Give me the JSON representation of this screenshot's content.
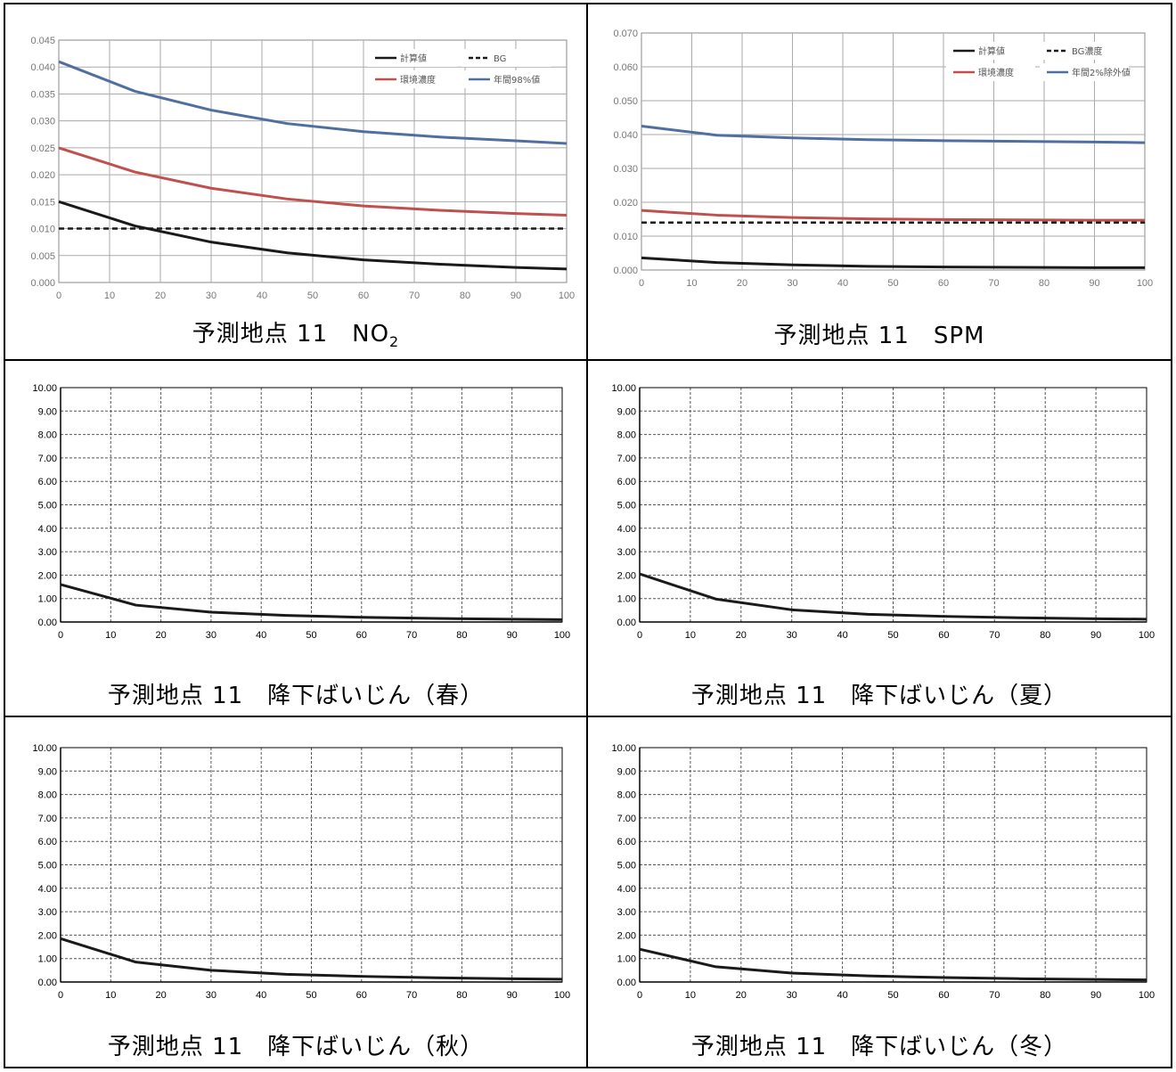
{
  "colors": {
    "calc": "#1a1a1a",
    "bg": "#1a1a1a",
    "env": "#c0504d",
    "annual": "#4f6fa0"
  },
  "panels": [
    {
      "caption_main": "予測地点 11　NO",
      "caption_sub": "2",
      "chart_data": {
        "type": "line",
        "x": [
          0,
          15,
          30,
          45,
          60,
          75,
          90,
          100
        ],
        "xticks": [
          0,
          10,
          20,
          30,
          40,
          50,
          60,
          70,
          80,
          90,
          100
        ],
        "xlim": [
          0,
          100
        ],
        "ylim": [
          0,
          0.045
        ],
        "yticks": [
          "0.000",
          "0.005",
          "0.010",
          "0.015",
          "0.020",
          "0.025",
          "0.030",
          "0.035",
          "0.040",
          "0.045"
        ],
        "grid": true,
        "legend_position": "top-right",
        "series": [
          {
            "name": "計算値",
            "style": "solid",
            "color_key": "calc",
            "values": [
              0.015,
              0.0105,
              0.0075,
              0.0055,
              0.0042,
              0.0034,
              0.0028,
              0.0025
            ]
          },
          {
            "name": "BG",
            "style": "dashed",
            "color_key": "bg",
            "values": [
              0.01,
              0.01,
              0.01,
              0.01,
              0.01,
              0.01,
              0.01,
              0.01
            ]
          },
          {
            "name": "環境濃度",
            "style": "solid",
            "color_key": "env",
            "values": [
              0.025,
              0.0205,
              0.0175,
              0.0155,
              0.0142,
              0.0134,
              0.0128,
              0.0125
            ]
          },
          {
            "name": "年間98%値",
            "style": "solid",
            "color_key": "annual",
            "values": [
              0.041,
              0.0355,
              0.032,
              0.0295,
              0.028,
              0.027,
              0.0263,
              0.0258
            ]
          }
        ]
      }
    },
    {
      "caption_main": "予測地点 11　SPM",
      "caption_sub": "",
      "chart_data": {
        "type": "line",
        "x": [
          0,
          15,
          30,
          45,
          60,
          75,
          90,
          100
        ],
        "xticks": [
          0,
          10,
          20,
          30,
          40,
          50,
          60,
          70,
          80,
          90,
          100
        ],
        "xlim": [
          0,
          100
        ],
        "ylim": [
          0,
          0.07
        ],
        "yticks": [
          "0.000",
          "0.010",
          "0.020",
          "0.030",
          "0.040",
          "0.050",
          "0.060",
          "0.070"
        ],
        "grid": true,
        "legend_position": "top-right",
        "series": [
          {
            "name": "計算値",
            "style": "solid",
            "color_key": "calc",
            "values": [
              0.0036,
              0.0022,
              0.0015,
              0.0011,
              0.0009,
              0.0008,
              0.0007,
              0.0007
            ]
          },
          {
            "name": "BG濃度",
            "style": "dashed",
            "color_key": "bg",
            "values": [
              0.014,
              0.014,
              0.014,
              0.014,
              0.014,
              0.014,
              0.014,
              0.014
            ]
          },
          {
            "name": "環境濃度",
            "style": "solid",
            "color_key": "env",
            "values": [
              0.0176,
              0.0162,
              0.0155,
              0.0151,
              0.0149,
              0.0148,
              0.0147,
              0.0147
            ]
          },
          {
            "name": "年間2%除外値",
            "style": "solid",
            "color_key": "annual",
            "values": [
              0.0425,
              0.0398,
              0.039,
              0.0385,
              0.0382,
              0.038,
              0.0378,
              0.0376
            ]
          }
        ]
      }
    },
    {
      "caption_main": "予測地点 11　降下ばいじん（春）",
      "caption_sub": "",
      "chart_data": {
        "type": "line",
        "x": [
          0,
          15,
          30,
          45,
          60,
          75,
          90,
          100
        ],
        "xticks": [
          0,
          10,
          20,
          30,
          40,
          50,
          60,
          70,
          80,
          90,
          100
        ],
        "xlim": [
          0,
          100
        ],
        "ylim": [
          0,
          10
        ],
        "yticks": [
          "0.00",
          "1.00",
          "2.00",
          "3.00",
          "4.00",
          "5.00",
          "6.00",
          "7.00",
          "8.00",
          "9.00",
          "10.00"
        ],
        "grid": true,
        "series": [
          {
            "name": "",
            "style": "solid",
            "color_key": "calc",
            "values": [
              1.6,
              0.72,
              0.42,
              0.28,
              0.2,
              0.15,
              0.12,
              0.1
            ]
          }
        ]
      }
    },
    {
      "caption_main": "予測地点 11　降下ばいじん（夏）",
      "caption_sub": "",
      "chart_data": {
        "type": "line",
        "x": [
          0,
          15,
          30,
          45,
          60,
          75,
          90,
          100
        ],
        "xticks": [
          0,
          10,
          20,
          30,
          40,
          50,
          60,
          70,
          80,
          90,
          100
        ],
        "xlim": [
          0,
          100
        ],
        "ylim": [
          0,
          10
        ],
        "yticks": [
          "0.00",
          "1.00",
          "2.00",
          "3.00",
          "4.00",
          "5.00",
          "6.00",
          "7.00",
          "8.00",
          "9.00",
          "10.00"
        ],
        "grid": true,
        "series": [
          {
            "name": "",
            "style": "solid",
            "color_key": "calc",
            "values": [
              2.05,
              0.98,
              0.52,
              0.33,
              0.24,
              0.18,
              0.14,
              0.12
            ]
          }
        ]
      }
    },
    {
      "caption_main": "予測地点 11　降下ばいじん（秋）",
      "caption_sub": "",
      "chart_data": {
        "type": "line",
        "x": [
          0,
          15,
          30,
          45,
          60,
          75,
          90,
          100
        ],
        "xticks": [
          0,
          10,
          20,
          30,
          40,
          50,
          60,
          70,
          80,
          90,
          100
        ],
        "xlim": [
          0,
          100
        ],
        "ylim": [
          0,
          10
        ],
        "yticks": [
          "0.00",
          "1.00",
          "2.00",
          "3.00",
          "4.00",
          "5.00",
          "6.00",
          "7.00",
          "8.00",
          "9.00",
          "10.00"
        ],
        "grid": true,
        "series": [
          {
            "name": "",
            "style": "solid",
            "color_key": "calc",
            "values": [
              1.85,
              0.85,
              0.5,
              0.33,
              0.24,
              0.18,
              0.14,
              0.12
            ]
          }
        ]
      }
    },
    {
      "caption_main": "予測地点 11　降下ばいじん（冬）",
      "caption_sub": "",
      "chart_data": {
        "type": "line",
        "x": [
          0,
          15,
          30,
          45,
          60,
          75,
          90,
          100
        ],
        "xticks": [
          0,
          10,
          20,
          30,
          40,
          50,
          60,
          70,
          80,
          90,
          100
        ],
        "xlim": [
          0,
          100
        ],
        "ylim": [
          0,
          10
        ],
        "yticks": [
          "0.00",
          "1.00",
          "2.00",
          "3.00",
          "4.00",
          "5.00",
          "6.00",
          "7.00",
          "8.00",
          "9.00",
          "10.00"
        ],
        "grid": true,
        "series": [
          {
            "name": "",
            "style": "solid",
            "color_key": "calc",
            "values": [
              1.4,
              0.65,
              0.38,
              0.26,
              0.19,
              0.14,
              0.11,
              0.09
            ]
          }
        ]
      }
    }
  ]
}
